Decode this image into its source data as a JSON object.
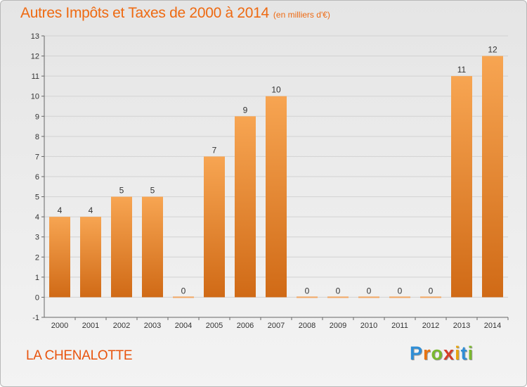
{
  "header": {
    "title": "Autres Impôts et Taxes de 2000 à 2014",
    "subtitle": "(en milliers d'€)"
  },
  "commune": "LA CHENALOTTE",
  "brand": {
    "letters": [
      "P",
      "r",
      "o",
      "x",
      "i",
      "t",
      "i"
    ],
    "colors": [
      "#2f8ed6",
      "#e8730f",
      "#7ab92e",
      "#d63e2a",
      "#e8a50f",
      "#2f8ed6",
      "#7ab92e"
    ]
  },
  "colors": {
    "bar_top": "#f7a552",
    "bar_bottom": "#d06a16",
    "zero_bar": "#f1a763",
    "axis": "#666666",
    "grid": "#d2d2d2"
  },
  "chart_data": {
    "type": "bar",
    "title": "Autres Impôts et Taxes de 2000 à 2014",
    "subtitle": "(en milliers d'€)",
    "categories": [
      "2000",
      "2001",
      "2002",
      "2003",
      "2004",
      "2005",
      "2006",
      "2007",
      "2008",
      "2009",
      "2010",
      "2011",
      "2012",
      "2013",
      "2014"
    ],
    "values": [
      4,
      4,
      5,
      5,
      0,
      7,
      9,
      10,
      0,
      0,
      0,
      0,
      0,
      11,
      12
    ],
    "data_labels": [
      "4",
      "4",
      "5",
      "5",
      "0",
      "7",
      "9",
      "10",
      "0",
      "0",
      "0",
      "0",
      "0",
      "11",
      "12"
    ],
    "ylim": [
      -1,
      13
    ],
    "yticks": [
      -1,
      0,
      1,
      2,
      3,
      4,
      5,
      6,
      7,
      8,
      9,
      10,
      11,
      12,
      13
    ],
    "ytick_labels": [
      "-1",
      "0",
      "1",
      "2",
      "3",
      "4",
      "5",
      "6",
      "7",
      "8",
      "9",
      "10",
      "11",
      "12",
      "13"
    ],
    "grid": true,
    "legend": "none"
  }
}
